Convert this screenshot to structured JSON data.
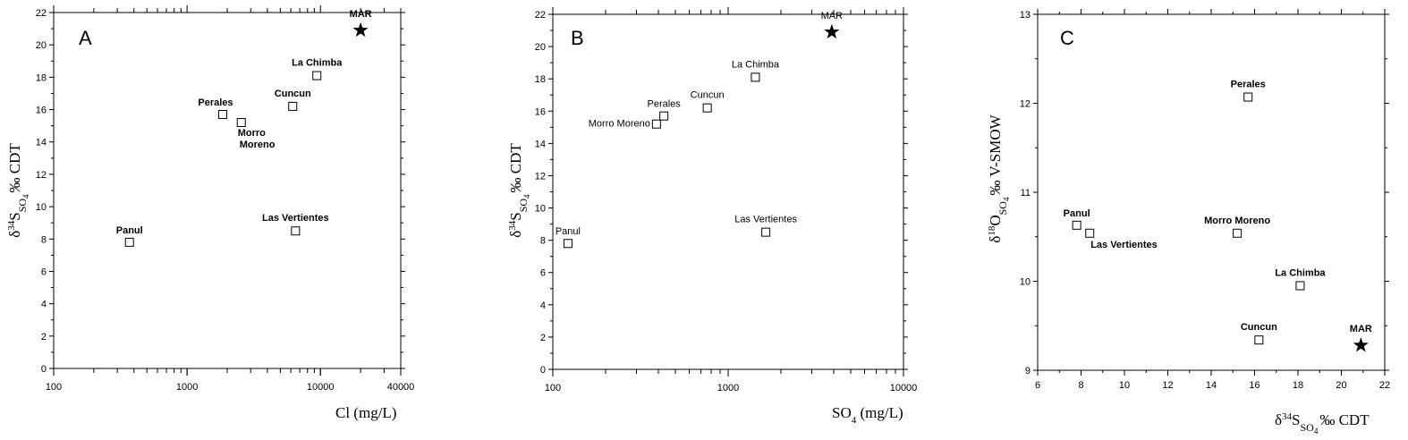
{
  "chart_data": [
    {
      "type": "scatter",
      "panel": "A",
      "xscale": "log",
      "xlim": [
        100,
        40000
      ],
      "ylim": [
        0,
        22
      ],
      "xticks": [
        100,
        1000,
        10000,
        40000
      ],
      "xtick_labels": [
        "100",
        "1000",
        "10000",
        "40000"
      ],
      "yticks": [
        0,
        2,
        4,
        6,
        8,
        10,
        12,
        14,
        16,
        18,
        20,
        22
      ],
      "xlabel": "Cl (mg/L)",
      "ylabel": "δ34SSO4 ‰ CDT",
      "points": [
        {
          "label": "Panul",
          "x": 370,
          "y": 7.8,
          "marker": "square"
        },
        {
          "label": "Perales",
          "x": 1850,
          "y": 15.7,
          "marker": "square"
        },
        {
          "label": "Morro Moreno",
          "x": 2550,
          "y": 15.2,
          "marker": "square"
        },
        {
          "label": "Cuncun",
          "x": 6200,
          "y": 16.2,
          "marker": "square"
        },
        {
          "label": "La Chimba",
          "x": 9400,
          "y": 18.1,
          "marker": "square"
        },
        {
          "label": "Las Vertientes",
          "x": 6500,
          "y": 8.5,
          "marker": "square"
        },
        {
          "label": "MAR",
          "x": 20000,
          "y": 20.9,
          "marker": "star"
        }
      ]
    },
    {
      "type": "scatter",
      "panel": "B",
      "xscale": "log",
      "xlim": [
        100,
        10000
      ],
      "ylim": [
        0,
        22
      ],
      "xticks": [
        100,
        1000,
        10000
      ],
      "xtick_labels": [
        "100",
        "1000",
        "10000"
      ],
      "yticks": [
        0,
        2,
        4,
        6,
        8,
        10,
        12,
        14,
        16,
        18,
        20,
        22
      ],
      "xlabel": "SO4 (mg/L)",
      "ylabel": "δ34SSO4 ‰ CDT",
      "points": [
        {
          "label": "Panul",
          "x": 122,
          "y": 7.8,
          "marker": "square"
        },
        {
          "label": "Morro Moreno",
          "x": 390,
          "y": 15.2,
          "marker": "square"
        },
        {
          "label": "Perales",
          "x": 430,
          "y": 15.7,
          "marker": "square"
        },
        {
          "label": "Cuncun",
          "x": 760,
          "y": 16.2,
          "marker": "square"
        },
        {
          "label": "La Chimba",
          "x": 1430,
          "y": 18.1,
          "marker": "square"
        },
        {
          "label": "Las Vertientes",
          "x": 1640,
          "y": 8.5,
          "marker": "square"
        },
        {
          "label": "MAR",
          "x": 3900,
          "y": 20.9,
          "marker": "star"
        }
      ]
    },
    {
      "type": "scatter",
      "panel": "C",
      "xscale": "linear",
      "xlim": [
        6,
        22
      ],
      "ylim": [
        9,
        13
      ],
      "xticks": [
        6,
        8,
        10,
        12,
        14,
        16,
        18,
        20,
        22
      ],
      "yticks": [
        9,
        10,
        11,
        12,
        13
      ],
      "xlabel": "δ34SSO4 ‰ CDT",
      "ylabel": "δ18OSO4 ‰ V-SMOW",
      "points": [
        {
          "label": "Panul",
          "x": 7.8,
          "y": 10.63,
          "marker": "square"
        },
        {
          "label": "Las Vertientes",
          "x": 8.4,
          "y": 10.54,
          "marker": "square"
        },
        {
          "label": "Perales",
          "x": 15.7,
          "y": 12.07,
          "marker": "square"
        },
        {
          "label": "Morro Moreno",
          "x": 15.2,
          "y": 10.54,
          "marker": "square"
        },
        {
          "label": "La Chimba",
          "x": 18.1,
          "y": 9.95,
          "marker": "square"
        },
        {
          "label": "Cuncun",
          "x": 16.2,
          "y": 9.34,
          "marker": "square"
        },
        {
          "label": "MAR",
          "x": 20.9,
          "y": 9.28,
          "marker": "star"
        }
      ]
    }
  ],
  "labels": {
    "panel_a_letter": "A",
    "panel_b_letter": "B",
    "panel_c_letter": "C",
    "delta": "δ",
    "sup34": "34",
    "sup18": "18",
    "S": "S",
    "O": "O",
    "sub_so4": "SO",
    "sub4": "4",
    "cdt": "‰ CDT",
    "vsmow": "‰ V-SMOW",
    "cl_axis": "Cl (mg/L)",
    "so4_prefix": "SO",
    "so4_sub": "4",
    "so4_unit": " (mg/L)"
  }
}
